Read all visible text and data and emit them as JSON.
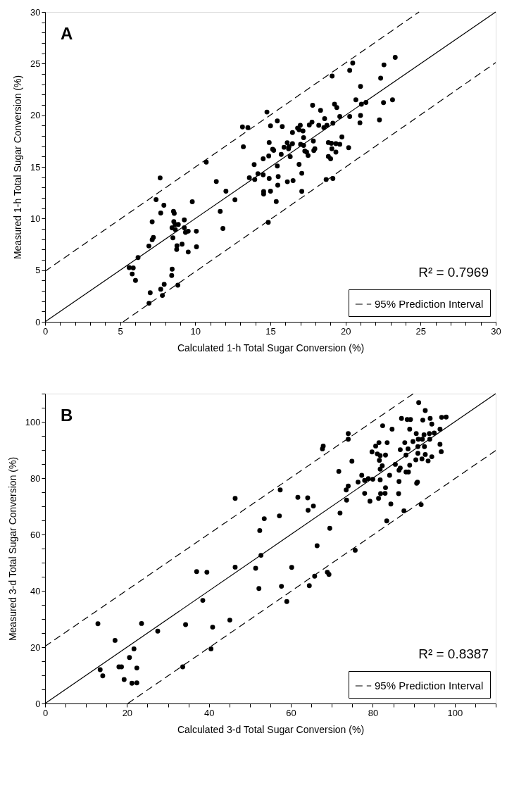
{
  "chart_data": [
    {
      "type": "scatter",
      "xlabel": "Calculated 1-h Total Sugar Conversion (%)",
      "ylabel": "Measured 1-h Total Sugar Conversion (%)",
      "xlim": [
        0,
        30
      ],
      "ylim": [
        0,
        30
      ],
      "xticks": [
        0,
        {
          "value": 1,
          "label": null
        },
        {
          "value": 2,
          "label": null
        },
        {
          "value": 3,
          "label": null
        },
        {
          "value": 4,
          "label": null
        },
        5,
        {
          "value": 6,
          "label": null
        },
        {
          "value": 7,
          "label": null
        },
        {
          "value": 8,
          "label": null
        },
        {
          "value": 9,
          "label": null
        },
        10,
        {
          "value": 11,
          "label": null
        },
        {
          "value": 12,
          "label": null
        },
        {
          "value": 13,
          "label": null
        },
        {
          "value": 14,
          "label": null
        },
        15,
        {
          "value": 16,
          "label": null
        },
        {
          "value": 17,
          "label": null
        },
        {
          "value": 18,
          "label": null
        },
        {
          "value": 19,
          "label": null
        },
        20,
        {
          "value": 21,
          "label": null
        },
        {
          "value": 22,
          "label": null
        },
        {
          "value": 23,
          "label": null
        },
        {
          "value": 24,
          "label": null
        },
        25,
        {
          "value": 26,
          "label": null
        },
        {
          "value": 27,
          "label": null
        },
        {
          "value": 28,
          "label": null
        },
        {
          "value": 29,
          "label": null
        },
        30
      ],
      "yticks": [
        0,
        {
          "value": 1,
          "label": null
        },
        {
          "value": 2,
          "label": null
        },
        {
          "value": 3,
          "label": null
        },
        {
          "value": 4,
          "label": null
        },
        5,
        {
          "value": 6,
          "label": null
        },
        {
          "value": 7,
          "label": null
        },
        {
          "value": 8,
          "label": null
        },
        {
          "value": 9,
          "label": null
        },
        10,
        {
          "value": 11,
          "label": null
        },
        {
          "value": 12,
          "label": null
        },
        {
          "value": 13,
          "label": null
        },
        {
          "value": 14,
          "label": null
        },
        15,
        {
          "value": 16,
          "label": null
        },
        {
          "value": 17,
          "label": null
        },
        {
          "value": 18,
          "label": null
        },
        {
          "value": 19,
          "label": null
        },
        20,
        {
          "value": 21,
          "label": null
        },
        {
          "value": 22,
          "label": null
        },
        {
          "value": 23,
          "label": null
        },
        {
          "value": 24,
          "label": null
        },
        25,
        {
          "value": 26,
          "label": null
        },
        {
          "value": 27,
          "label": null
        },
        {
          "value": 28,
          "label": null
        },
        {
          "value": 29,
          "label": null
        },
        30
      ],
      "grid": false,
      "legend": "bottom right",
      "annotations": [
        "A",
        "R² = 0.7969"
      ],
      "series": [
        {
          "type": "scatter",
          "marker": "circle",
          "color": "#000000",
          "x": [
            7.66,
            7.39,
            7.91,
            7.7,
            8.55,
            8.6,
            7.13,
            7.21,
            7.13,
            6.91,
            6.19,
            5.6,
            5.87,
            5.8,
            6.02,
            7.0,
            6.92,
            7.7,
            7.93,
            7.81,
            8.46,
            8.43,
            8.84,
            9.27,
            8.57,
            8.66,
            8.87,
            8.45,
            8.67,
            9.27,
            9.35,
            9.53,
            10.07,
            8.51,
            8.78,
            9.12,
            8.76,
            9.53,
            10.08,
            9.8,
            10.73,
            11.4,
            11.66,
            11.84,
            12.04,
            12.64,
            13.14,
            13.5,
            13.2,
            13.6,
            14.77,
            15.01,
            15.46,
            15.79,
            14.92,
            15.15,
            15.22,
            14.89,
            14.52,
            13.92,
            14.17,
            14.52,
            13.96,
            14.92,
            14.55,
            14.55,
            15.01,
            15.39,
            15.52,
            15.46,
            15.49,
            14.86,
            15.72,
            15.91,
            16.12,
            16.24,
            16.21,
            16.47,
            16.32,
            16.13,
            16.51,
            16.47,
            16.81,
            16.99,
            16.91,
            17.17,
            17.21,
            17.01,
            17.21,
            17.29,
            17.41,
            17.51,
            16.91,
            17.09,
            17.09,
            17.59,
            17.77,
            17.81,
            17.86,
            17.96,
            17.89,
            18.22,
            18.34,
            18.61,
            18.56,
            18.76,
            18.86,
            19.06,
            19.09,
            19.36,
            19.62,
            19.36,
            18.86,
            19.01,
            18.71,
            19.16,
            19.16,
            19.27,
            19.42,
            19.62,
            19.76,
            20.21,
            19.11,
            20.28,
            20.48,
            20.28,
            20.69,
            21.0,
            21.06,
            21.36,
            21.0,
            20.96,
            22.26,
            22.53,
            23.13,
            22.34,
            22.56,
            23.31
          ],
          "values": [
            13.93,
            11.83,
            11.28,
            10.54,
            10.69,
            10.5,
            9.68,
            8.16,
            7.95,
            7.34,
            6.22,
            5.25,
            5.21,
            4.63,
            4.0,
            2.81,
            1.8,
            3.16,
            3.63,
            2.55,
            5.1,
            4.48,
            3.55,
            9.87,
            9.7,
            9.42,
            9.42,
            9.1,
            8.94,
            9.1,
            8.66,
            8.77,
            8.77,
            8.13,
            7.37,
            7.52,
            7.0,
            6.76,
            7.26,
            11.62,
            15.46,
            13.58,
            10.69,
            9.03,
            12.65,
            11.81,
            18.87,
            18.8,
            16.95,
            13.95,
            20.31,
            18.97,
            19.45,
            18.91,
            17.36,
            16.71,
            16.6,
            16.06,
            15.78,
            15.22,
            14.34,
            14.23,
            13.78,
            13.88,
            12.61,
            12.38,
            12.65,
            11.64,
            14.06,
            15.09,
            13.23,
            9.63,
            16.21,
            16.9,
            17.33,
            16.97,
            16.75,
            17.25,
            15.99,
            13.56,
            13.67,
            18.33,
            18.76,
            19.02,
            18.59,
            18.48,
            17.83,
            17.19,
            17.08,
            16.54,
            16.43,
            16.1,
            15.24,
            14.38,
            12.63,
            19.06,
            19.34,
            20.96,
            17.5,
            16.75,
            16.58,
            19.02,
            20.48,
            19.67,
            18.8,
            19.02,
            17.36,
            17.29,
            16.75,
            17.25,
            17.19,
            16.43,
            16.0,
            15.78,
            13.78,
            13.88,
            19.23,
            21.07,
            20.74,
            19.88,
            17.9,
            16.86,
            23.8,
            24.34,
            25.06,
            19.88,
            21.5,
            22.79,
            21.07,
            21.24,
            19.98,
            19.27,
            19.55,
            21.22,
            21.5,
            23.59,
            24.88,
            25.6
          ]
        },
        {
          "type": "line",
          "color": "#000000",
          "line_style": "solid",
          "x": [
            0,
            30
          ],
          "values": [
            0,
            30
          ]
        },
        {
          "type": "line",
          "color": "#000000",
          "line_style": "dashed",
          "name": "95% Prediction Interval",
          "x": [
            0,
            24.9
          ],
          "values": [
            4.9,
            30
          ]
        },
        {
          "type": "line",
          "color": "#000000",
          "line_style": "dashed",
          "x": [
            5.2,
            30
          ],
          "values": [
            0,
            25.1
          ]
        }
      ]
    },
    {
      "type": "scatter",
      "xlabel": "Calculated 3-d Total Sugar Conversion (%)",
      "ylabel": "Measured 3-d Total Sugar Conversion (%)",
      "xlim": [
        0,
        110
      ],
      "ylim": [
        0,
        110
      ],
      "xticks": [
        0,
        {
          "value": 5,
          "label": null
        },
        {
          "value": 10,
          "label": null
        },
        {
          "value": 15,
          "label": null
        },
        20,
        {
          "value": 25,
          "label": null
        },
        {
          "value": 30,
          "label": null
        },
        {
          "value": 35,
          "label": null
        },
        40,
        {
          "value": 45,
          "label": null
        },
        {
          "value": 50,
          "label": null
        },
        {
          "value": 55,
          "label": null
        },
        60,
        {
          "value": 65,
          "label": null
        },
        {
          "value": 70,
          "label": null
        },
        {
          "value": 75,
          "label": null
        },
        80,
        {
          "value": 85,
          "label": null
        },
        {
          "value": 90,
          "label": null
        },
        {
          "value": 95,
          "label": null
        },
        100,
        {
          "value": 105,
          "label": null
        },
        {
          "value": 110,
          "label": null
        }
      ],
      "yticks": [
        0,
        {
          "value": 5,
          "label": null
        },
        {
          "value": 10,
          "label": null
        },
        {
          "value": 15,
          "label": null
        },
        20,
        {
          "value": 25,
          "label": null
        },
        {
          "value": 30,
          "label": null
        },
        {
          "value": 35,
          "label": null
        },
        40,
        {
          "value": 45,
          "label": null
        },
        {
          "value": 50,
          "label": null
        },
        {
          "value": 55,
          "label": null
        },
        60,
        {
          "value": 65,
          "label": null
        },
        {
          "value": 70,
          "label": null
        },
        {
          "value": 75,
          "label": null
        },
        80,
        {
          "value": 85,
          "label": null
        },
        {
          "value": 90,
          "label": null
        },
        {
          "value": 95,
          "label": null
        },
        100,
        {
          "value": 105,
          "label": null
        },
        {
          "value": 110,
          "label": null
        }
      ],
      "grid": false,
      "legend": "bottom right",
      "annotations": [
        "B",
        "R² = 0.8387"
      ],
      "series": [
        {
          "type": "scatter",
          "marker": "circle",
          "color": "#000000",
          "x": [
            12.9,
            13.45,
            14.08,
            17.08,
            18.03,
            18.65,
            19.3,
            20.6,
            21.7,
            21.2,
            22.4,
            22.4,
            23.55,
            27.5,
            33.6,
            34.3,
            40.5,
            40.9,
            45.1,
            46.4,
            37.0,
            39.5,
            46.4,
            38.5,
            91.2,
            92.8,
            87.0,
            88.4,
            89.2,
            92.2,
            94.0,
            94.4,
            96.8,
            97.9,
            82.4,
            84.7,
            89.0,
            96.4,
            90.6,
            92.5,
            93.8,
            95.0,
            74.0,
            74.0,
            67.9,
            67.7,
            89.8,
            91.1,
            92.1,
            93.9,
            81.5,
            83.5,
            87.8,
            80.7,
            91.0,
            92.6,
            96.4,
            79.8,
            86.7,
            88.6,
            81.1,
            81.8,
            83.1,
            88.1,
            91.0,
            92.8,
            96.7,
            94.4,
            90.5,
            92.0,
            93.5,
            81.6,
            74.9,
            71.7,
            82.3,
            85.5,
            81.8,
            86.7,
            86.4,
            89.0,
            88.1,
            88.7,
            77.3,
            78.9,
            80.0,
            81.8,
            84.1,
            76.4,
            78.0,
            86.4,
            90.9,
            90.7,
            74.0,
            73.5,
            83.1,
            81.9,
            83.0,
            78.0,
            86.3,
            81.4,
            79.3,
            73.6,
            84.4,
            91.8,
            87.6,
            83.4,
            72.0,
            69.5,
            66.4,
            75.7,
            57.4,
            61.7,
            64.1,
            65.5,
            64.2,
            57.2,
            53.5,
            52.4,
            52.7,
            51.4,
            60.2,
            52.2,
            57.7,
            64.5,
            65.8,
            68.9,
            69.3,
            59.0
          ],
          "values": [
            28.3,
            12.0,
            9.8,
            22.4,
            13.0,
            13.0,
            8.5,
            16.3,
            19.4,
            7.2,
            7.3,
            12.6,
            28.4,
            25.7,
            13.0,
            28.0,
            19.4,
            27.1,
            29.6,
            72.8,
            46.8,
            46.6,
            48.4,
            36.6,
            106.8,
            104.0,
            101.2,
            100.8,
            100.8,
            100.6,
            101.2,
            99.2,
            101.6,
            101.7,
            98.6,
            97.4,
            97.4,
            97.4,
            95.8,
            95.4,
            95.8,
            96.0,
            95.8,
            93.8,
            91.4,
            90.4,
            93.0,
            93.8,
            93.8,
            93.8,
            92.6,
            92.6,
            92.6,
            91.4,
            91.2,
            91.2,
            92.0,
            89.3,
            90.1,
            90.4,
            88.6,
            88.0,
            88.2,
            88.2,
            88.8,
            88.4,
            89.4,
            87.6,
            86.5,
            86.8,
            86.1,
            86.3,
            86.0,
            82.4,
            84.4,
            84.9,
            83.2,
            83.6,
            82.8,
            84.6,
            82.2,
            82.2,
            81.0,
            79.8,
            79.6,
            79.4,
            81.0,
            78.6,
            79.2,
            78.8,
            78.6,
            78.2,
            77.2,
            75.8,
            76.6,
            74.5,
            74.6,
            74.6,
            74.5,
            72.8,
            71.8,
            72.2,
            70.8,
            70.6,
            68.4,
            64.8,
            67.6,
            62.2,
            56.0,
            54.4,
            75.8,
            73.2,
            73.0,
            70.1,
            68.6,
            66.6,
            65.6,
            61.4,
            52.6,
            48.0,
            48.3,
            40.8,
            41.6,
            41.8,
            45.2,
            46.6,
            45.8,
            36.2
          ]
        },
        {
          "type": "line",
          "color": "#000000",
          "line_style": "solid",
          "x": [
            0,
            110
          ],
          "values": [
            0,
            110
          ]
        },
        {
          "type": "line",
          "color": "#000000",
          "line_style": "dashed",
          "name": "95% Prediction Interval",
          "x": [
            0,
            89.9
          ],
          "values": [
            20.3,
            110
          ]
        },
        {
          "type": "line",
          "color": "#000000",
          "line_style": "dashed",
          "x": [
            20.2,
            110
          ],
          "values": [
            0,
            89.8
          ]
        }
      ]
    }
  ]
}
